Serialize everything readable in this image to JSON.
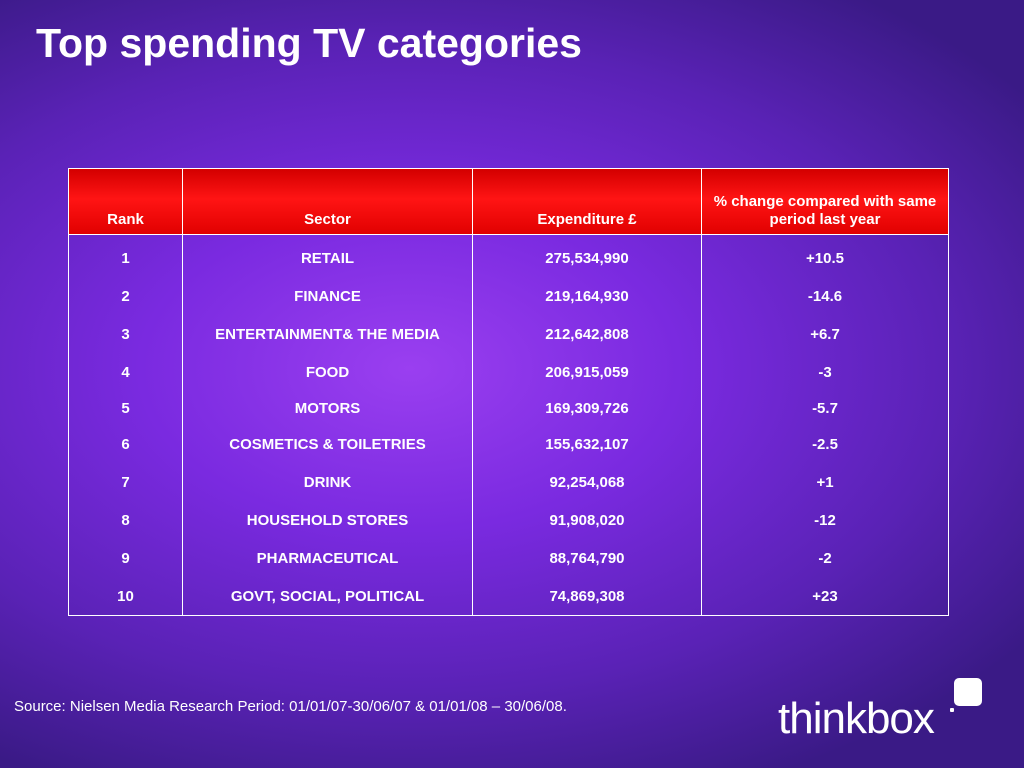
{
  "slide": {
    "title": "Top spending TV categories",
    "source": "Source: Nielsen Media Research Period: 01/01/07-30/06/07 & 01/01/08 – 30/06/08.",
    "logo": {
      "text": "thinkbox",
      "icon": "thinkbox-square-icon"
    }
  },
  "table": {
    "headers": [
      "Rank",
      "Sector",
      "Expenditure £",
      "% change compared with same period last year"
    ],
    "rows": [
      [
        "1",
        "RETAIL",
        "275,534,990",
        "+10.5"
      ],
      [
        "2",
        "FINANCE",
        "219,164,930",
        "-14.6"
      ],
      [
        "3",
        "ENTERTAINMENT& THE MEDIA",
        "212,642,808",
        "+6.7"
      ],
      [
        "4",
        "FOOD",
        "206,915,059",
        "-3"
      ],
      [
        "5",
        "MOTORS",
        "169,309,726",
        "-5.7"
      ],
      [
        "6",
        "COSMETICS & TOILETRIES",
        "155,632,107",
        "-2.5"
      ],
      [
        "7",
        "DRINK",
        "92,254,068",
        "+1"
      ],
      [
        "8",
        "HOUSEHOLD STORES",
        "91,908,020",
        "-12"
      ],
      [
        "9",
        "PHARMACEUTICAL",
        "88,764,790",
        "-2"
      ],
      [
        "10",
        "GOVT, SOCIAL, POLITICAL",
        "74,869,308",
        "+23"
      ]
    ]
  },
  "colors": {
    "header_red": "#ff1414",
    "background_purple": "#7a2ae0",
    "text": "#ffffff"
  }
}
